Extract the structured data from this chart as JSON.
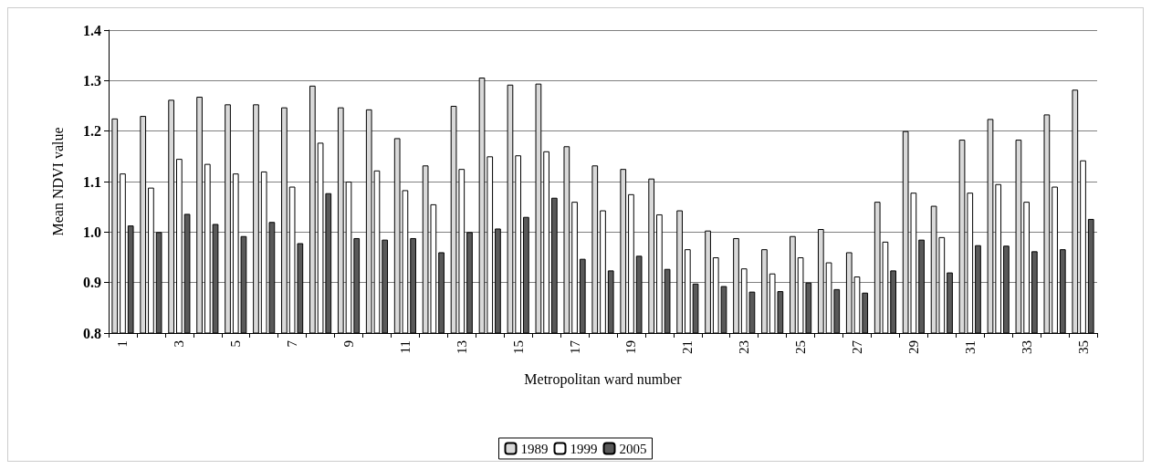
{
  "chart_data": {
    "type": "bar",
    "xlabel": "Metropolitan ward number",
    "ylabel": "Mean NDVI value",
    "categories": [
      "1",
      null,
      "3",
      null,
      "5",
      null,
      "7",
      null,
      "9",
      null,
      "11",
      null,
      "13",
      null,
      "15",
      null,
      "17",
      null,
      "19",
      null,
      "21",
      null,
      "23",
      null,
      "25",
      null,
      "27",
      null,
      "29",
      null,
      "31",
      null,
      "33",
      null,
      "35"
    ],
    "series": [
      {
        "name": "1989",
        "color": "#d9d9d9",
        "values": [
          1.225,
          1.23,
          1.262,
          1.268,
          1.253,
          1.253,
          1.247,
          1.29,
          1.247,
          1.243,
          1.186,
          1.132,
          1.25,
          1.306,
          1.292,
          1.294,
          1.17,
          1.132,
          1.125,
          1.106,
          1.043,
          1.003,
          0.988,
          0.966,
          0.992,
          1.006,
          0.96,
          1.06,
          1.2,
          1.052,
          1.183,
          1.224,
          1.183,
          1.233,
          1.282
        ]
      },
      {
        "name": "1999",
        "color": "#ffffff",
        "values": [
          1.116,
          1.088,
          1.145,
          1.135,
          1.116,
          1.12,
          1.09,
          1.177,
          1.1,
          1.122,
          1.083,
          1.055,
          1.125,
          1.15,
          1.152,
          1.16,
          1.06,
          1.043,
          1.075,
          1.035,
          0.966,
          0.95,
          0.928,
          0.918,
          0.95,
          0.94,
          0.912,
          0.981,
          1.078,
          0.99,
          1.078,
          1.095,
          1.06,
          1.09,
          1.142
        ]
      },
      {
        "name": "2005",
        "color": "#595959",
        "values": [
          1.013,
          1.0,
          1.036,
          1.016,
          0.992,
          1.02,
          0.978,
          1.077,
          0.988,
          0.985,
          0.988,
          0.96,
          1.0,
          1.007,
          1.03,
          1.068,
          0.947,
          0.924,
          0.953,
          0.927,
          0.898,
          0.893,
          0.882,
          0.883,
          0.9,
          0.887,
          0.88,
          0.924,
          0.985,
          0.92,
          0.974,
          0.973,
          0.962,
          0.966,
          1.026
        ]
      }
    ],
    "ylim": [
      0.8,
      1.4
    ],
    "yticks": [
      {
        "value": 0.8,
        "label": "0.8"
      },
      {
        "value": 0.9,
        "label": "0.9"
      },
      {
        "value": 1.0,
        "label": "1.0"
      },
      {
        "value": 1.1,
        "label": "1.1"
      },
      {
        "value": 1.2,
        "label": "1.2"
      },
      {
        "value": 1.3,
        "label": "1.3"
      },
      {
        "value": 1.4,
        "label": "1.4"
      }
    ],
    "grid": "y",
    "legend": "bottom"
  }
}
